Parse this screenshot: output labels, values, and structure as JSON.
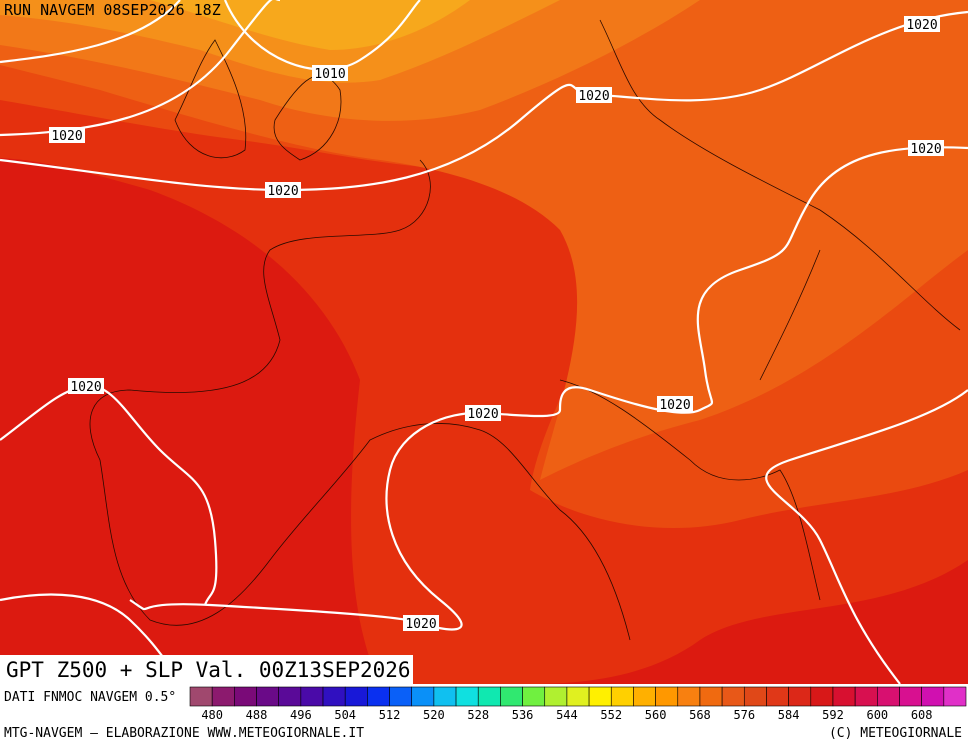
{
  "header": {
    "run": "RUN NAVGEM 08SEP2026 18Z"
  },
  "map": {
    "isobar_labels": [
      1010,
      1020,
      1020,
      1020,
      1020,
      1020,
      1020,
      1020,
      1020,
      1020
    ]
  },
  "title": "GPT Z500 + SLP Val. 00Z13SEP2026",
  "colorbar": {
    "caption": "DATI FNMOC NAVGEM 0.5°",
    "colors": [
      "#a0486e",
      "#8c1a6e",
      "#7a0a78",
      "#6a0a88",
      "#5a0a98",
      "#4a0aa8",
      "#3010c0",
      "#1818d8",
      "#0a30f0",
      "#0a60f8",
      "#0a90f8",
      "#10c0f0",
      "#10e0e0",
      "#10e8b0",
      "#30e870",
      "#70f040",
      "#b0f030",
      "#e0f020",
      "#fff000",
      "#ffd000",
      "#ffb000",
      "#ff9800",
      "#f88010",
      "#f06a10",
      "#e85818",
      "#e04818",
      "#e03818",
      "#dc2818",
      "#d81818",
      "#d81030",
      "#d81050",
      "#d81070",
      "#d81090",
      "#d010b0",
      "#e030c8"
    ],
    "labels": [
      480,
      488,
      496,
      504,
      512,
      520,
      528,
      536,
      544,
      552,
      560,
      568,
      576,
      584,
      592,
      600,
      608
    ]
  },
  "footer": {
    "left": "MTG-NAVGEM – ELABORAZIONE WWW.METEOGIORNALE.IT",
    "right": "(C) METEOGIORNALE"
  }
}
